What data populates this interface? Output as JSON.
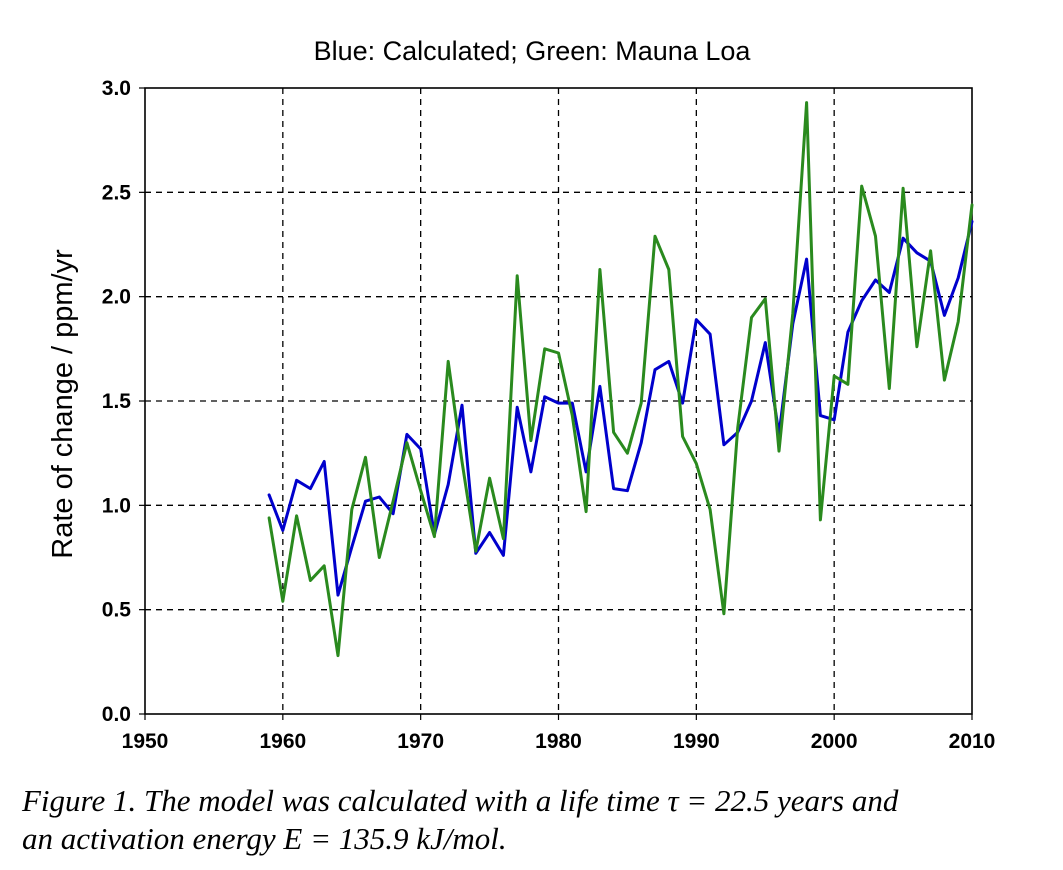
{
  "caption": {
    "line1": "Figure 1. The model was calculated with a life time τ = 22.5 years and",
    "line2": "an activation energy E = 135.9 kJ/mol."
  },
  "chart_data": {
    "type": "line",
    "title": "Blue: Calculated; Green: Mauna Loa",
    "xlabel": "",
    "ylabel": "Rate of change / ppm/yr",
    "xlim": [
      1950,
      2010
    ],
    "ylim": [
      0.0,
      3.0
    ],
    "xticks": [
      1950,
      1960,
      1970,
      1980,
      1990,
      2000,
      2010
    ],
    "yticks": [
      "0.0",
      "0.5",
      "1.0",
      "1.5",
      "2.0",
      "2.5",
      "3.0"
    ],
    "grid": true,
    "series": [
      {
        "color": "#0000cc",
        "x": [
          1959,
          1960,
          1961,
          1962,
          1963,
          1964,
          1965,
          1966,
          1967,
          1968,
          1969,
          1970,
          1971,
          1972,
          1973,
          1974,
          1975,
          1976,
          1977,
          1978,
          1979,
          1980,
          1981,
          1982,
          1983,
          1984,
          1985,
          1986,
          1987,
          1988,
          1989,
          1990,
          1991,
          1992,
          1993,
          1994,
          1995,
          1996,
          1997,
          1998,
          1999,
          2000,
          2001,
          2002,
          2003,
          2004,
          2005,
          2006,
          2007,
          2008,
          2009,
          2010
        ],
        "values": [
          1.05,
          0.88,
          1.12,
          1.08,
          1.21,
          0.57,
          0.8,
          1.02,
          1.04,
          0.96,
          1.34,
          1.27,
          0.86,
          1.1,
          1.48,
          0.77,
          0.87,
          0.76,
          1.47,
          1.16,
          1.52,
          1.49,
          1.49,
          1.16,
          1.57,
          1.08,
          1.07,
          1.3,
          1.65,
          1.69,
          1.49,
          1.89,
          1.82,
          1.29,
          1.35,
          1.5,
          1.78,
          1.34,
          1.87,
          2.18,
          1.43,
          1.41,
          1.83,
          1.98,
          2.08,
          2.02,
          2.28,
          2.21,
          2.17,
          1.91,
          2.09,
          2.36
        ]
      },
      {
        "color": "#2a8a1e",
        "x": [
          1959,
          1960,
          1961,
          1962,
          1963,
          1964,
          1965,
          1966,
          1967,
          1968,
          1969,
          1970,
          1971,
          1972,
          1973,
          1974,
          1975,
          1976,
          1977,
          1978,
          1979,
          1980,
          1981,
          1982,
          1983,
          1984,
          1985,
          1986,
          1987,
          1988,
          1989,
          1990,
          1991,
          1992,
          1993,
          1994,
          1995,
          1996,
          1997,
          1998,
          1999,
          2000,
          2001,
          2002,
          2003,
          2004,
          2005,
          2006,
          2007,
          2008,
          2009,
          2010
        ],
        "values": [
          0.94,
          0.54,
          0.95,
          0.64,
          0.71,
          0.28,
          0.98,
          1.23,
          0.75,
          1.02,
          1.3,
          1.07,
          0.85,
          1.69,
          1.21,
          0.78,
          1.13,
          0.84,
          2.1,
          1.31,
          1.75,
          1.73,
          1.43,
          0.97,
          2.13,
          1.35,
          1.25,
          1.49,
          2.29,
          2.13,
          1.33,
          1.2,
          0.98,
          0.48,
          1.37,
          1.9,
          1.99,
          1.26,
          1.92,
          2.93,
          0.93,
          1.62,
          1.58,
          2.53,
          2.29,
          1.56,
          2.52,
          1.76,
          2.22,
          1.6,
          1.88,
          2.44
        ]
      }
    ]
  }
}
